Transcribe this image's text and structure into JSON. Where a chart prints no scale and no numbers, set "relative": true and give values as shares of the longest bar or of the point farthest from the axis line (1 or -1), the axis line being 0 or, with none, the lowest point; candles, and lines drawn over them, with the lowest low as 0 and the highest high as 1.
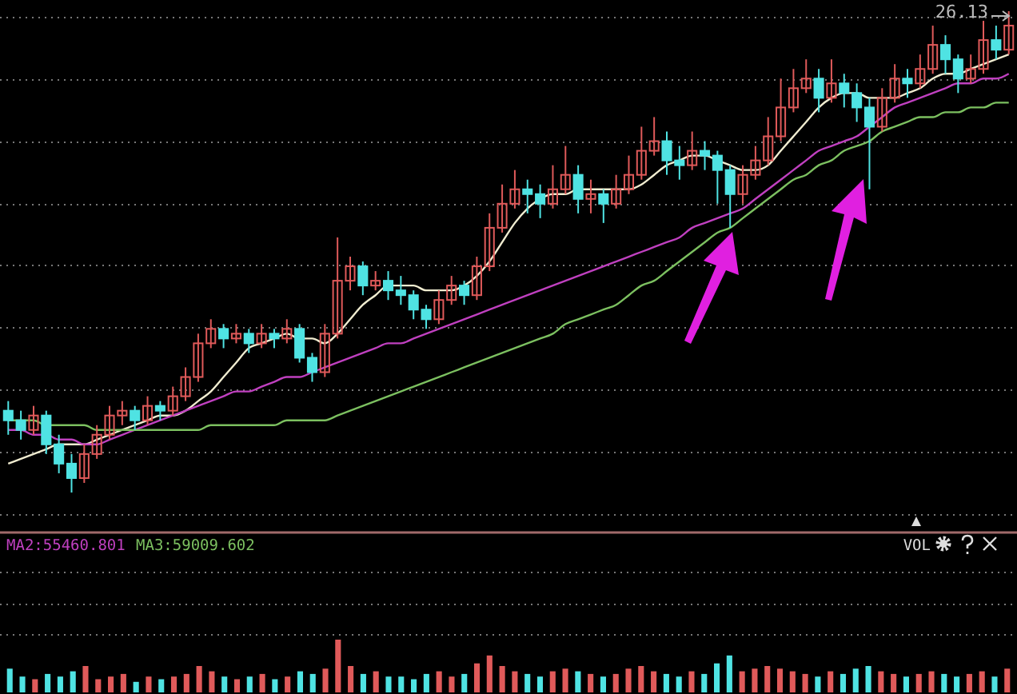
{
  "chart_data": [
    {
      "type": "candlestick",
      "relative": true,
      "grid": true,
      "annotations": [
        "26.13"
      ],
      "categories": [
        null,
        null,
        null,
        null,
        null,
        null,
        null,
        null,
        null,
        null,
        null,
        null,
        null,
        null,
        null,
        null,
        null,
        null,
        null,
        null,
        null,
        null,
        null,
        null,
        null,
        null,
        null,
        null,
        null,
        null,
        null,
        null,
        null,
        null,
        null,
        null,
        null,
        null,
        null,
        null,
        null,
        null,
        null,
        null,
        null,
        null,
        null,
        null,
        null,
        null,
        null,
        null,
        null,
        null,
        null,
        null,
        null,
        null,
        null,
        null,
        null,
        null,
        null,
        null,
        null,
        null,
        null,
        null,
        null,
        null,
        null,
        null,
        null,
        null,
        null,
        null,
        null,
        null,
        null,
        null
      ],
      "ohlc": [
        [
          0.17,
          0.19,
          0.12,
          0.15
        ],
        [
          0.15,
          0.17,
          0.11,
          0.13
        ],
        [
          0.13,
          0.18,
          0.12,
          0.16
        ],
        [
          0.16,
          0.17,
          0.08,
          0.1
        ],
        [
          0.1,
          0.12,
          0.04,
          0.06
        ],
        [
          0.06,
          0.08,
          0.0,
          0.03
        ],
        [
          0.03,
          0.1,
          0.02,
          0.08
        ],
        [
          0.08,
          0.14,
          0.07,
          0.12
        ],
        [
          0.12,
          0.18,
          0.11,
          0.16
        ],
        [
          0.16,
          0.19,
          0.14,
          0.17
        ],
        [
          0.17,
          0.18,
          0.13,
          0.15
        ],
        [
          0.15,
          0.2,
          0.14,
          0.18
        ],
        [
          0.18,
          0.19,
          0.15,
          0.17
        ],
        [
          0.17,
          0.22,
          0.16,
          0.2
        ],
        [
          0.2,
          0.26,
          0.19,
          0.24
        ],
        [
          0.24,
          0.33,
          0.23,
          0.31
        ],
        [
          0.31,
          0.36,
          0.3,
          0.34
        ],
        [
          0.34,
          0.35,
          0.3,
          0.32
        ],
        [
          0.32,
          0.35,
          0.31,
          0.33
        ],
        [
          0.33,
          0.34,
          0.29,
          0.31
        ],
        [
          0.31,
          0.35,
          0.3,
          0.33
        ],
        [
          0.33,
          0.34,
          0.3,
          0.32
        ],
        [
          0.32,
          0.36,
          0.31,
          0.34
        ],
        [
          0.34,
          0.35,
          0.27,
          0.28
        ],
        [
          0.28,
          0.29,
          0.23,
          0.25
        ],
        [
          0.25,
          0.35,
          0.24,
          0.33
        ],
        [
          0.33,
          0.53,
          0.32,
          0.44
        ],
        [
          0.44,
          0.49,
          0.42,
          0.47
        ],
        [
          0.47,
          0.48,
          0.41,
          0.43
        ],
        [
          0.43,
          0.46,
          0.42,
          0.44
        ],
        [
          0.44,
          0.46,
          0.4,
          0.42
        ],
        [
          0.42,
          0.45,
          0.39,
          0.41
        ],
        [
          0.41,
          0.42,
          0.36,
          0.38
        ],
        [
          0.38,
          0.39,
          0.34,
          0.36
        ],
        [
          0.36,
          0.42,
          0.35,
          0.4
        ],
        [
          0.4,
          0.45,
          0.39,
          0.43
        ],
        [
          0.43,
          0.44,
          0.39,
          0.41
        ],
        [
          0.41,
          0.49,
          0.4,
          0.47
        ],
        [
          0.47,
          0.58,
          0.46,
          0.55
        ],
        [
          0.55,
          0.64,
          0.54,
          0.6
        ],
        [
          0.6,
          0.67,
          0.59,
          0.63
        ],
        [
          0.63,
          0.65,
          0.58,
          0.62
        ],
        [
          0.62,
          0.64,
          0.57,
          0.6
        ],
        [
          0.6,
          0.68,
          0.59,
          0.63
        ],
        [
          0.63,
          0.72,
          0.62,
          0.66
        ],
        [
          0.66,
          0.68,
          0.58,
          0.61
        ],
        [
          0.61,
          0.65,
          0.58,
          0.62
        ],
        [
          0.62,
          0.63,
          0.56,
          0.6
        ],
        [
          0.6,
          0.66,
          0.59,
          0.63
        ],
        [
          0.63,
          0.7,
          0.62,
          0.66
        ],
        [
          0.66,
          0.76,
          0.65,
          0.71
        ],
        [
          0.71,
          0.78,
          0.7,
          0.73
        ],
        [
          0.73,
          0.75,
          0.66,
          0.69
        ],
        [
          0.69,
          0.72,
          0.65,
          0.68
        ],
        [
          0.68,
          0.75,
          0.67,
          0.71
        ],
        [
          0.71,
          0.73,
          0.67,
          0.7
        ],
        [
          0.7,
          0.71,
          0.6,
          0.67
        ],
        [
          0.67,
          0.68,
          0.55,
          0.62
        ],
        [
          0.62,
          0.68,
          0.6,
          0.66
        ],
        [
          0.66,
          0.72,
          0.65,
          0.69
        ],
        [
          0.69,
          0.78,
          0.68,
          0.74
        ],
        [
          0.74,
          0.86,
          0.73,
          0.8
        ],
        [
          0.8,
          0.88,
          0.79,
          0.84
        ],
        [
          0.84,
          0.9,
          0.83,
          0.86
        ],
        [
          0.86,
          0.88,
          0.79,
          0.82
        ],
        [
          0.82,
          0.9,
          0.81,
          0.85
        ],
        [
          0.85,
          0.87,
          0.8,
          0.83
        ],
        [
          0.83,
          0.85,
          0.77,
          0.8
        ],
        [
          0.8,
          0.82,
          0.63,
          0.76
        ],
        [
          0.76,
          0.84,
          0.75,
          0.82
        ],
        [
          0.82,
          0.89,
          0.81,
          0.86
        ],
        [
          0.86,
          0.88,
          0.82,
          0.85
        ],
        [
          0.85,
          0.91,
          0.84,
          0.88
        ],
        [
          0.88,
          0.97,
          0.87,
          0.93
        ],
        [
          0.93,
          0.95,
          0.87,
          0.9
        ],
        [
          0.9,
          0.91,
          0.83,
          0.86
        ],
        [
          0.86,
          0.91,
          0.85,
          0.88
        ],
        [
          0.88,
          0.98,
          0.87,
          0.94
        ],
        [
          0.94,
          0.97,
          0.9,
          0.92
        ],
        [
          0.92,
          1.0,
          0.91,
          0.97
        ]
      ],
      "colors": [
        "#4fe3e3",
        "#4fe3e3",
        "#e05a5a",
        "#4fe3e3",
        "#4fe3e3",
        "#4fe3e3",
        "#e05a5a",
        "#e05a5a",
        "#e05a5a",
        "#e05a5a",
        "#4fe3e3",
        "#e05a5a",
        "#4fe3e3",
        "#e05a5a",
        "#e05a5a",
        "#e05a5a",
        "#e05a5a",
        "#4fe3e3",
        "#e05a5a",
        "#4fe3e3",
        "#e05a5a",
        "#4fe3e3",
        "#e05a5a",
        "#4fe3e3",
        "#4fe3e3",
        "#e05a5a",
        "#e05a5a",
        "#e05a5a",
        "#4fe3e3",
        "#e05a5a",
        "#4fe3e3",
        "#4fe3e3",
        "#4fe3e3",
        "#4fe3e3",
        "#e05a5a",
        "#e05a5a",
        "#4fe3e3",
        "#e05a5a",
        "#e05a5a",
        "#e05a5a",
        "#e05a5a",
        "#4fe3e3",
        "#4fe3e3",
        "#e05a5a",
        "#e05a5a",
        "#4fe3e3",
        "#e05a5a",
        "#4fe3e3",
        "#e05a5a",
        "#e05a5a",
        "#e05a5a",
        "#e05a5a",
        "#4fe3e3",
        "#4fe3e3",
        "#e05a5a",
        "#4fe3e3",
        "#4fe3e3",
        "#4fe3e3",
        "#e05a5a",
        "#e05a5a",
        "#e05a5a",
        "#e05a5a",
        "#e05a5a",
        "#e05a5a",
        "#4fe3e3",
        "#e05a5a",
        "#4fe3e3",
        "#4fe3e3",
        "#4fe3e3",
        "#e05a5a",
        "#e05a5a",
        "#4fe3e3",
        "#e05a5a",
        "#e05a5a",
        "#4fe3e3",
        "#4fe3e3",
        "#e05a5a",
        "#e05a5a",
        "#4fe3e3",
        "#e05a5a"
      ],
      "series": [
        {
          "type": "line",
          "color": "#f0ecd0",
          "values": [
            0.06,
            0.07,
            0.08,
            0.09,
            0.1,
            0.1,
            0.1,
            0.11,
            0.12,
            0.13,
            0.14,
            0.15,
            0.16,
            0.16,
            0.17,
            0.19,
            0.21,
            0.24,
            0.27,
            0.3,
            0.31,
            0.32,
            0.33,
            0.32,
            0.32,
            0.31,
            0.33,
            0.36,
            0.39,
            0.41,
            0.43,
            0.43,
            0.43,
            0.42,
            0.42,
            0.42,
            0.43,
            0.45,
            0.48,
            0.52,
            0.56,
            0.59,
            0.61,
            0.62,
            0.62,
            0.63,
            0.63,
            0.63,
            0.63,
            0.63,
            0.64,
            0.66,
            0.68,
            0.69,
            0.7,
            0.7,
            0.69,
            0.68,
            0.67,
            0.67,
            0.68,
            0.71,
            0.74,
            0.77,
            0.8,
            0.82,
            0.83,
            0.83,
            0.82,
            0.82,
            0.82,
            0.83,
            0.84,
            0.86,
            0.87,
            0.87,
            0.88,
            0.89,
            0.9,
            0.91
          ]
        },
        {
          "type": "line",
          "color": "#c040c0",
          "values": [
            0.13,
            0.13,
            0.12,
            0.12,
            0.11,
            0.11,
            0.1,
            0.1,
            0.11,
            0.12,
            0.13,
            0.14,
            0.15,
            0.16,
            0.17,
            0.18,
            0.19,
            0.2,
            0.21,
            0.21,
            0.22,
            0.23,
            0.24,
            0.24,
            0.25,
            0.26,
            0.27,
            0.28,
            0.29,
            0.3,
            0.31,
            0.31,
            0.32,
            0.33,
            0.34,
            0.35,
            0.36,
            0.37,
            0.38,
            0.39,
            0.4,
            0.41,
            0.42,
            0.43,
            0.44,
            0.45,
            0.46,
            0.47,
            0.48,
            0.49,
            0.5,
            0.51,
            0.52,
            0.53,
            0.55,
            0.56,
            0.57,
            0.58,
            0.59,
            0.61,
            0.63,
            0.65,
            0.67,
            0.69,
            0.71,
            0.72,
            0.73,
            0.74,
            0.76,
            0.78,
            0.8,
            0.81,
            0.82,
            0.83,
            0.84,
            0.85,
            0.85,
            0.86,
            0.86,
            0.87
          ]
        },
        {
          "type": "line",
          "color": "#7cc060",
          "values": [
            0.15,
            0.15,
            0.15,
            0.14,
            0.14,
            0.14,
            0.14,
            0.13,
            0.13,
            0.13,
            0.13,
            0.13,
            0.13,
            0.13,
            0.13,
            0.13,
            0.14,
            0.14,
            0.14,
            0.14,
            0.14,
            0.14,
            0.15,
            0.15,
            0.15,
            0.15,
            0.16,
            0.17,
            0.18,
            0.19,
            0.2,
            0.21,
            0.22,
            0.23,
            0.24,
            0.25,
            0.26,
            0.27,
            0.28,
            0.29,
            0.3,
            0.31,
            0.32,
            0.33,
            0.35,
            0.36,
            0.37,
            0.38,
            0.39,
            0.41,
            0.43,
            0.44,
            0.46,
            0.48,
            0.5,
            0.52,
            0.54,
            0.55,
            0.57,
            0.59,
            0.61,
            0.63,
            0.65,
            0.66,
            0.68,
            0.69,
            0.71,
            0.72,
            0.73,
            0.75,
            0.76,
            0.77,
            0.78,
            0.78,
            0.79,
            0.79,
            0.8,
            0.8,
            0.81,
            0.81
          ]
        }
      ]
    },
    {
      "type": "bar",
      "relative": true,
      "annotations": [
        "MA2:55460.801",
        "MA3:59009.602",
        "VOL"
      ],
      "categories": [
        null,
        null,
        null,
        null,
        null,
        null,
        null,
        null,
        null,
        null,
        null,
        null,
        null,
        null,
        null,
        null,
        null,
        null,
        null,
        null,
        null,
        null,
        null,
        null,
        null,
        null,
        null,
        null,
        null,
        null,
        null,
        null,
        null,
        null,
        null,
        null,
        null,
        null,
        null,
        null,
        null,
        null,
        null,
        null,
        null,
        null,
        null,
        null,
        null,
        null,
        null,
        null,
        null,
        null,
        null,
        null,
        null,
        null,
        null,
        null,
        null,
        null,
        null,
        null,
        null,
        null,
        null,
        null,
        null,
        null,
        null,
        null,
        null,
        null,
        null,
        null,
        null,
        null,
        null,
        null
      ],
      "values": [
        0.45,
        0.3,
        0.25,
        0.35,
        0.3,
        0.4,
        0.5,
        0.25,
        0.3,
        0.35,
        0.2,
        0.3,
        0.25,
        0.3,
        0.35,
        0.5,
        0.4,
        0.3,
        0.25,
        0.3,
        0.35,
        0.25,
        0.3,
        0.4,
        0.35,
        0.45,
        1.0,
        0.5,
        0.35,
        0.4,
        0.3,
        0.3,
        0.25,
        0.35,
        0.4,
        0.3,
        0.35,
        0.55,
        0.7,
        0.5,
        0.4,
        0.35,
        0.3,
        0.4,
        0.45,
        0.4,
        0.35,
        0.3,
        0.35,
        0.45,
        0.5,
        0.4,
        0.35,
        0.3,
        0.4,
        0.35,
        0.55,
        0.7,
        0.4,
        0.45,
        0.5,
        0.45,
        0.4,
        0.35,
        0.3,
        0.4,
        0.35,
        0.45,
        0.5,
        0.4,
        0.35,
        0.3,
        0.35,
        0.4,
        0.35,
        0.3,
        0.35,
        0.4,
        0.3,
        0.45
      ],
      "colors": [
        "#4fe3e3",
        "#4fe3e3",
        "#e05a5a",
        "#4fe3e3",
        "#4fe3e3",
        "#4fe3e3",
        "#e05a5a",
        "#e05a5a",
        "#e05a5a",
        "#e05a5a",
        "#4fe3e3",
        "#e05a5a",
        "#4fe3e3",
        "#e05a5a",
        "#e05a5a",
        "#e05a5a",
        "#e05a5a",
        "#4fe3e3",
        "#e05a5a",
        "#4fe3e3",
        "#e05a5a",
        "#4fe3e3",
        "#e05a5a",
        "#4fe3e3",
        "#4fe3e3",
        "#e05a5a",
        "#e05a5a",
        "#e05a5a",
        "#4fe3e3",
        "#e05a5a",
        "#4fe3e3",
        "#4fe3e3",
        "#4fe3e3",
        "#4fe3e3",
        "#e05a5a",
        "#e05a5a",
        "#4fe3e3",
        "#e05a5a",
        "#e05a5a",
        "#e05a5a",
        "#e05a5a",
        "#4fe3e3",
        "#4fe3e3",
        "#e05a5a",
        "#e05a5a",
        "#4fe3e3",
        "#e05a5a",
        "#4fe3e3",
        "#e05a5a",
        "#e05a5a",
        "#e05a5a",
        "#e05a5a",
        "#4fe3e3",
        "#4fe3e3",
        "#e05a5a",
        "#4fe3e3",
        "#4fe3e3",
        "#4fe3e3",
        "#e05a5a",
        "#e05a5a",
        "#e05a5a",
        "#e05a5a",
        "#e05a5a",
        "#e05a5a",
        "#4fe3e3",
        "#e05a5a",
        "#4fe3e3",
        "#4fe3e3",
        "#4fe3e3",
        "#e05a5a",
        "#e05a5a",
        "#4fe3e3",
        "#e05a5a",
        "#e05a5a",
        "#4fe3e3",
        "#4fe3e3",
        "#e05a5a",
        "#e05a5a",
        "#4fe3e3",
        "#e05a5a"
      ]
    }
  ]
}
